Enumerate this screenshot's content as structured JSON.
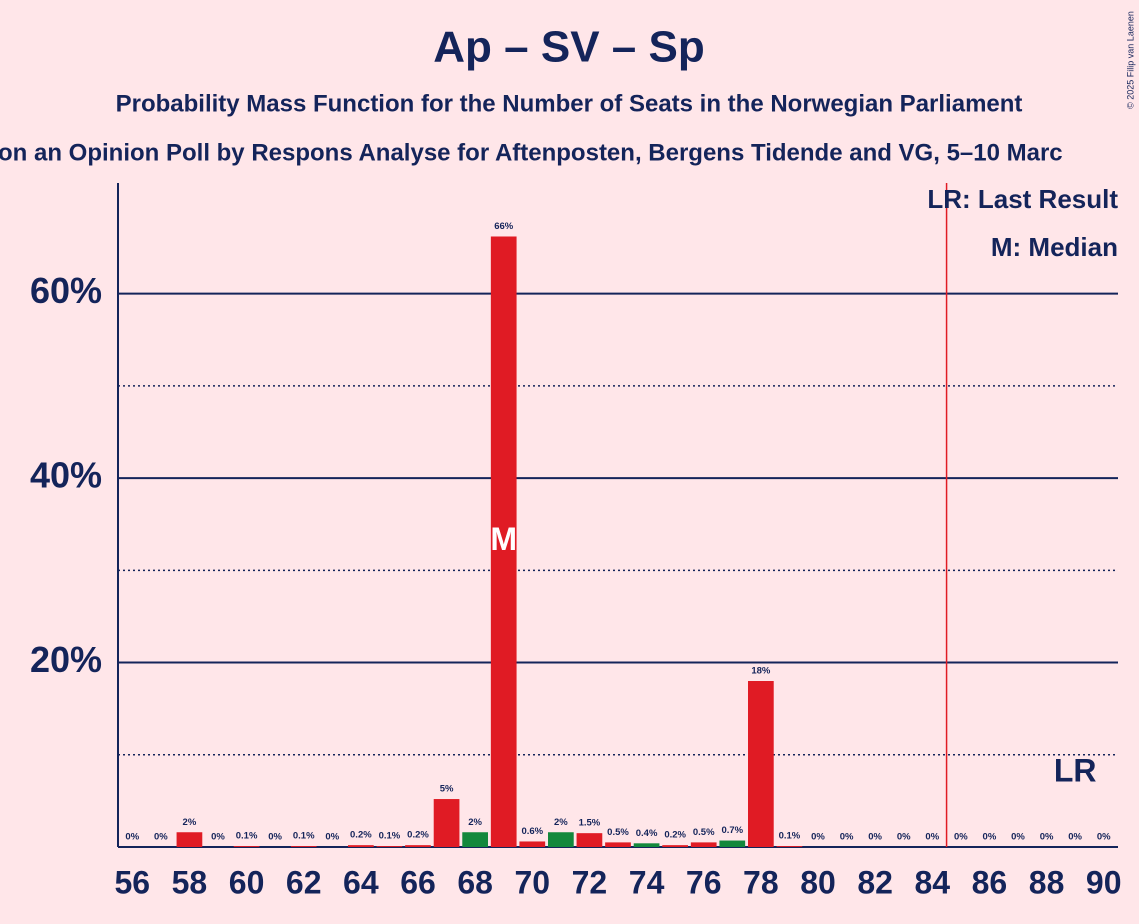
{
  "chart_data": {
    "type": "bar",
    "title": "Ap – SV – Sp",
    "subtitle": "Probability Mass Function for the Number of Seats in the Norwegian Parliament",
    "subtitle2": "on an Opinion Poll by Respons Analyse for Aftenposten, Bergens Tidende and VG, 5–10 Marc",
    "copyright": "© 2025 Filip van Laenen",
    "x": [
      56,
      57,
      58,
      59,
      60,
      61,
      62,
      63,
      64,
      65,
      66,
      67,
      68,
      69,
      70,
      71,
      72,
      73,
      74,
      75,
      76,
      77,
      78,
      79,
      80,
      81,
      82,
      83,
      84,
      85,
      86,
      87,
      88,
      89,
      90
    ],
    "values": [
      0,
      0,
      1.6,
      0,
      0.1,
      0,
      0.1,
      0,
      0.2,
      0.1,
      0.2,
      5.2,
      1.6,
      66.2,
      0.6,
      1.6,
      1.5,
      0.5,
      0.4,
      0.2,
      0.5,
      0.7,
      18,
      0.1,
      0,
      0,
      0,
      0,
      0,
      0,
      0,
      0,
      0,
      0,
      0
    ],
    "value_labels": [
      "0%",
      "0%",
      "2%",
      "0%",
      "0.1%",
      "0%",
      "0.1%",
      "0%",
      "0.2%",
      "0.1%",
      "0.2%",
      "5%",
      "2%",
      "66%",
      "0.6%",
      "2%",
      "1.5%",
      "0.5%",
      "0.4%",
      "0.2%",
      "0.5%",
      "0.7%",
      "18%",
      "0.1%",
      "0%",
      "0%",
      "0%",
      "0%",
      "0%",
      "0%",
      "0%",
      "0%",
      "0%",
      "0%",
      "0%"
    ],
    "colors": [
      "#e01b24",
      "#e01b24",
      "#e01b24",
      "#e01b24",
      "#e01b24",
      "#e01b24",
      "#e01b24",
      "#e01b24",
      "#e01b24",
      "#e01b24",
      "#e01b24",
      "#e01b24",
      "#14883c",
      "#e01b24",
      "#e01b24",
      "#14883c",
      "#e01b24",
      "#e01b24",
      "#14883c",
      "#e01b24",
      "#e01b24",
      "#14883c",
      "#e01b24",
      "#e01b24",
      "#e01b24",
      "#e01b24",
      "#e01b24",
      "#e01b24",
      "#e01b24",
      "#e01b24",
      "#e01b24",
      "#e01b24",
      "#e01b24",
      "#e01b24",
      "#e01b24"
    ],
    "xlim": [
      55.5,
      90.5
    ],
    "xticks": [
      56,
      58,
      60,
      62,
      64,
      66,
      68,
      70,
      72,
      74,
      76,
      78,
      80,
      82,
      84,
      86,
      88,
      90
    ],
    "ylim": [
      0,
      72
    ],
    "yticks": [
      {
        "value": 20,
        "label": "20%"
      },
      {
        "value": 40,
        "label": "40%"
      },
      {
        "value": 60,
        "label": "60%"
      }
    ],
    "minor_yticks": [
      10,
      30,
      50
    ],
    "median": 69,
    "median_label": "M",
    "last_result": 85,
    "last_result_label": "LR",
    "legend": [
      "LR: Last Result",
      "M: Median"
    ]
  }
}
